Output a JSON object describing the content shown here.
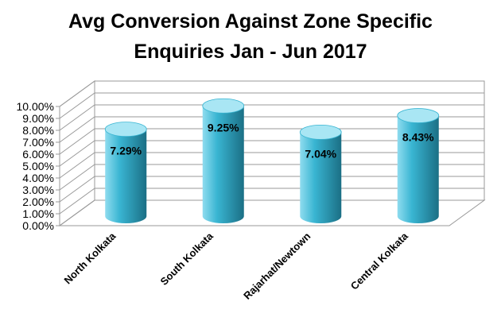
{
  "chart_data": {
    "type": "bar",
    "title_lines": [
      "Avg Conversion Against Zone Specific",
      "Enquiries Jan - Jun 2017"
    ],
    "categories": [
      "North Kolkata",
      "South Kolkata",
      "Rajarhat/Newtown",
      "Central Kolkata"
    ],
    "values": [
      7.29,
      9.25,
      7.04,
      8.43
    ],
    "data_labels": [
      "7.29%",
      "9.25%",
      "7.04%",
      "8.43%"
    ],
    "y_ticks": [
      "0.00%",
      "1.00%",
      "2.00%",
      "3.00%",
      "4.00%",
      "5.00%",
      "6.00%",
      "7.00%",
      "8.00%",
      "9.00%",
      "10.00%"
    ],
    "ylim": [
      0,
      10
    ],
    "bar_shape": "cylinder",
    "grid": true,
    "legend": "none",
    "colors": {
      "bar_light": "#8fdcef",
      "bar_mid": "#39b5d2",
      "bar_dark": "#1b6f85",
      "top_light": "#a9e6f4"
    }
  }
}
